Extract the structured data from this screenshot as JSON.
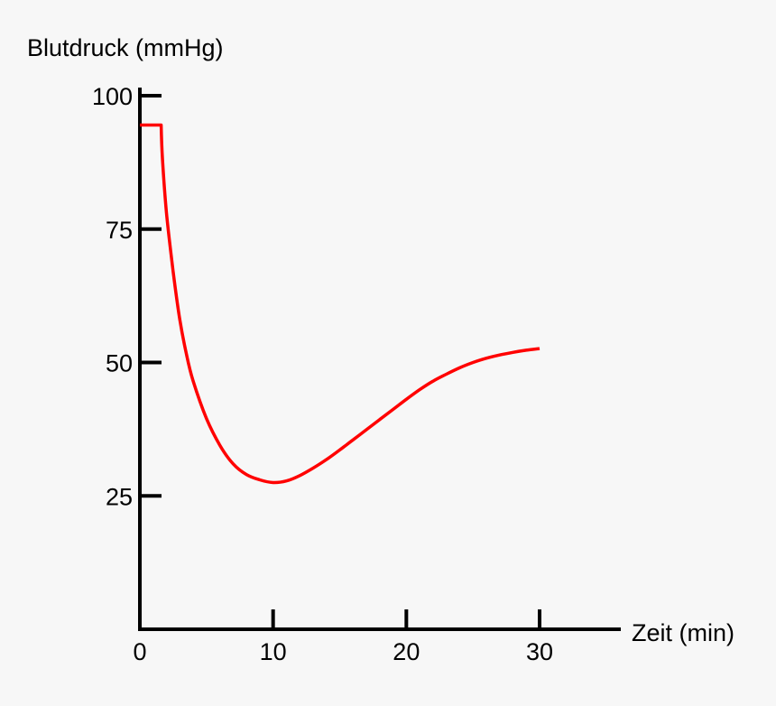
{
  "chart_data": {
    "type": "line",
    "xlabel": "Zeit (min)",
    "ylabel": "Blutdruck (mmHg)",
    "xlim": [
      0,
      36
    ],
    "ylim": [
      0,
      100
    ],
    "x_ticks": [
      0,
      10,
      20,
      30
    ],
    "y_ticks": [
      25,
      50,
      75,
      100
    ],
    "x_tick_labels": [
      "0",
      "10",
      "20",
      "30"
    ],
    "y_tick_labels": [
      "25",
      "50",
      "75",
      "100"
    ],
    "grid": false,
    "legend": "none",
    "series": [
      {
        "color": "#ff0000",
        "x": [
          0,
          1.6,
          1.7,
          2,
          2.5,
          3,
          3.5,
          4,
          5,
          6,
          7,
          8,
          9,
          10,
          11,
          12,
          13,
          14,
          15,
          16,
          17,
          18,
          19,
          20,
          21,
          22,
          23,
          24,
          25,
          26,
          27,
          28,
          29,
          30
        ],
        "y": [
          94.5,
          94.5,
          88,
          78,
          67,
          58,
          51.5,
          46.5,
          39.5,
          34.5,
          31,
          29,
          28,
          27.5,
          27.8,
          28.8,
          30.2,
          31.8,
          33.6,
          35.5,
          37.4,
          39.3,
          41.2,
          43.1,
          44.9,
          46.5,
          47.8,
          49.0,
          50.0,
          50.8,
          51.4,
          51.9,
          52.3,
          52.6
        ]
      }
    ]
  }
}
